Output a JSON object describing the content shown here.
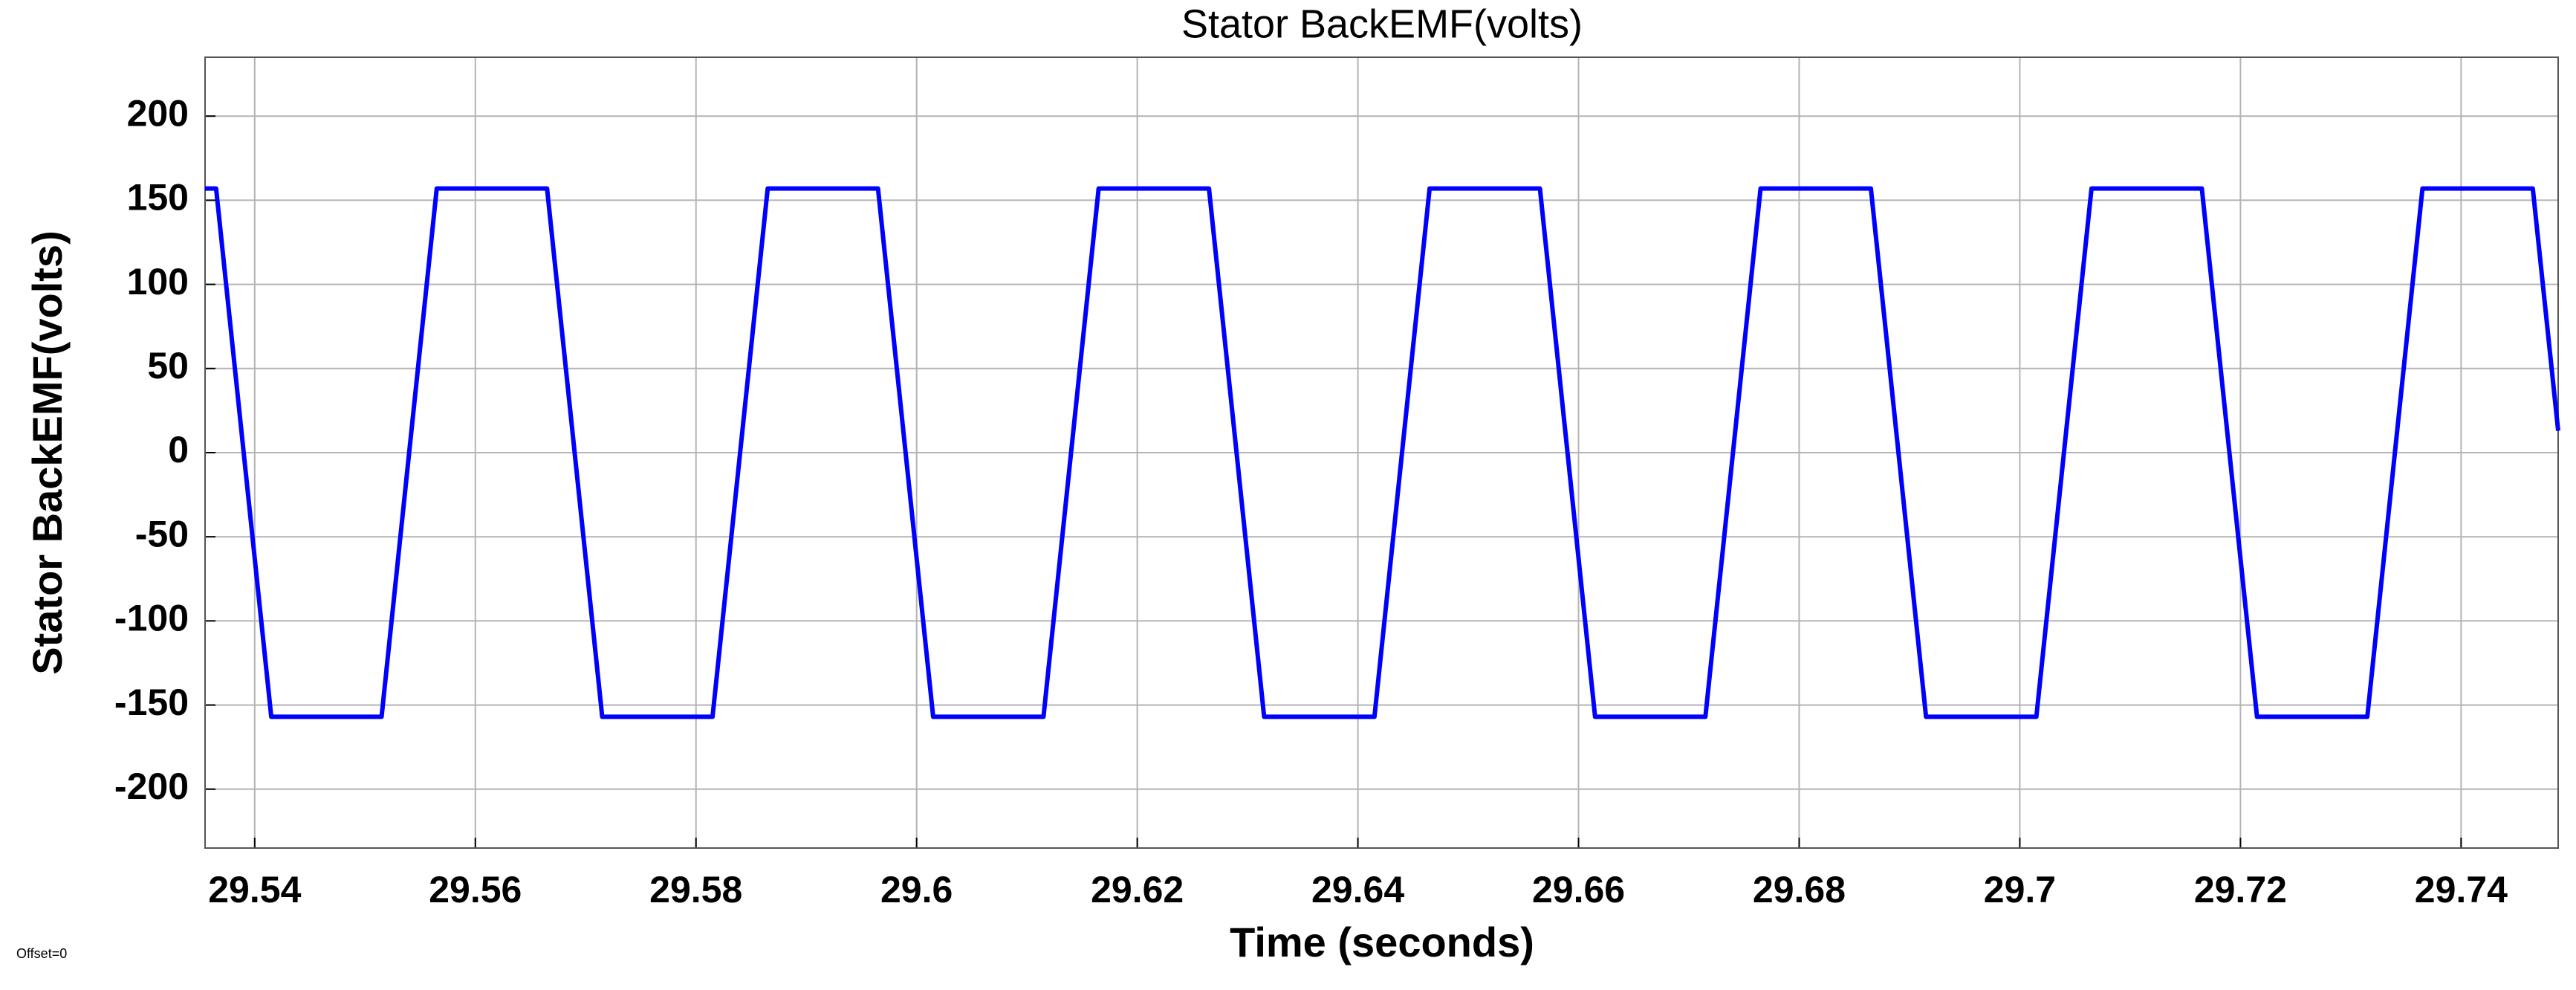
{
  "chart_data": {
    "type": "line",
    "title": "Stator BackEMF(volts)",
    "x_label": "Time (seconds)",
    "y_label": "Stator BackEMF(volts)",
    "annotation": "Offset=0",
    "x": [
      29.5355,
      29.5365,
      29.5415,
      29.5515,
      29.5565,
      29.5665,
      29.5715,
      29.5815,
      29.5865,
      29.5965,
      29.6015,
      29.6115,
      29.6165,
      29.6265,
      29.6315,
      29.6415,
      29.6465,
      29.6565,
      29.6615,
      29.6715,
      29.6765,
      29.6865,
      29.6915,
      29.7015,
      29.7065,
      29.7165,
      29.7215,
      29.7315,
      29.7365,
      29.7465,
      29.7488
    ],
    "series": [
      {
        "name": "Stator BackEMF",
        "color": "#0000ff",
        "values": [
          157,
          157,
          -157,
          -157,
          157,
          157,
          -157,
          -157,
          157,
          157,
          -157,
          -157,
          157,
          157,
          -157,
          -157,
          157,
          157,
          -157,
          -157,
          157,
          157,
          -157,
          -157,
          157,
          157,
          -157,
          -157,
          157,
          157,
          13
        ]
      }
    ],
    "xlim": [
      29.5355,
      29.7488
    ],
    "ylim": [
      -235,
      235
    ],
    "xticks": [
      29.54,
      29.56,
      29.58,
      29.6,
      29.62,
      29.64,
      29.66,
      29.68,
      29.7,
      29.72,
      29.74
    ],
    "yticks": [
      -200,
      -150,
      -100,
      -50,
      0,
      50,
      100,
      150,
      200
    ],
    "grid": true
  }
}
